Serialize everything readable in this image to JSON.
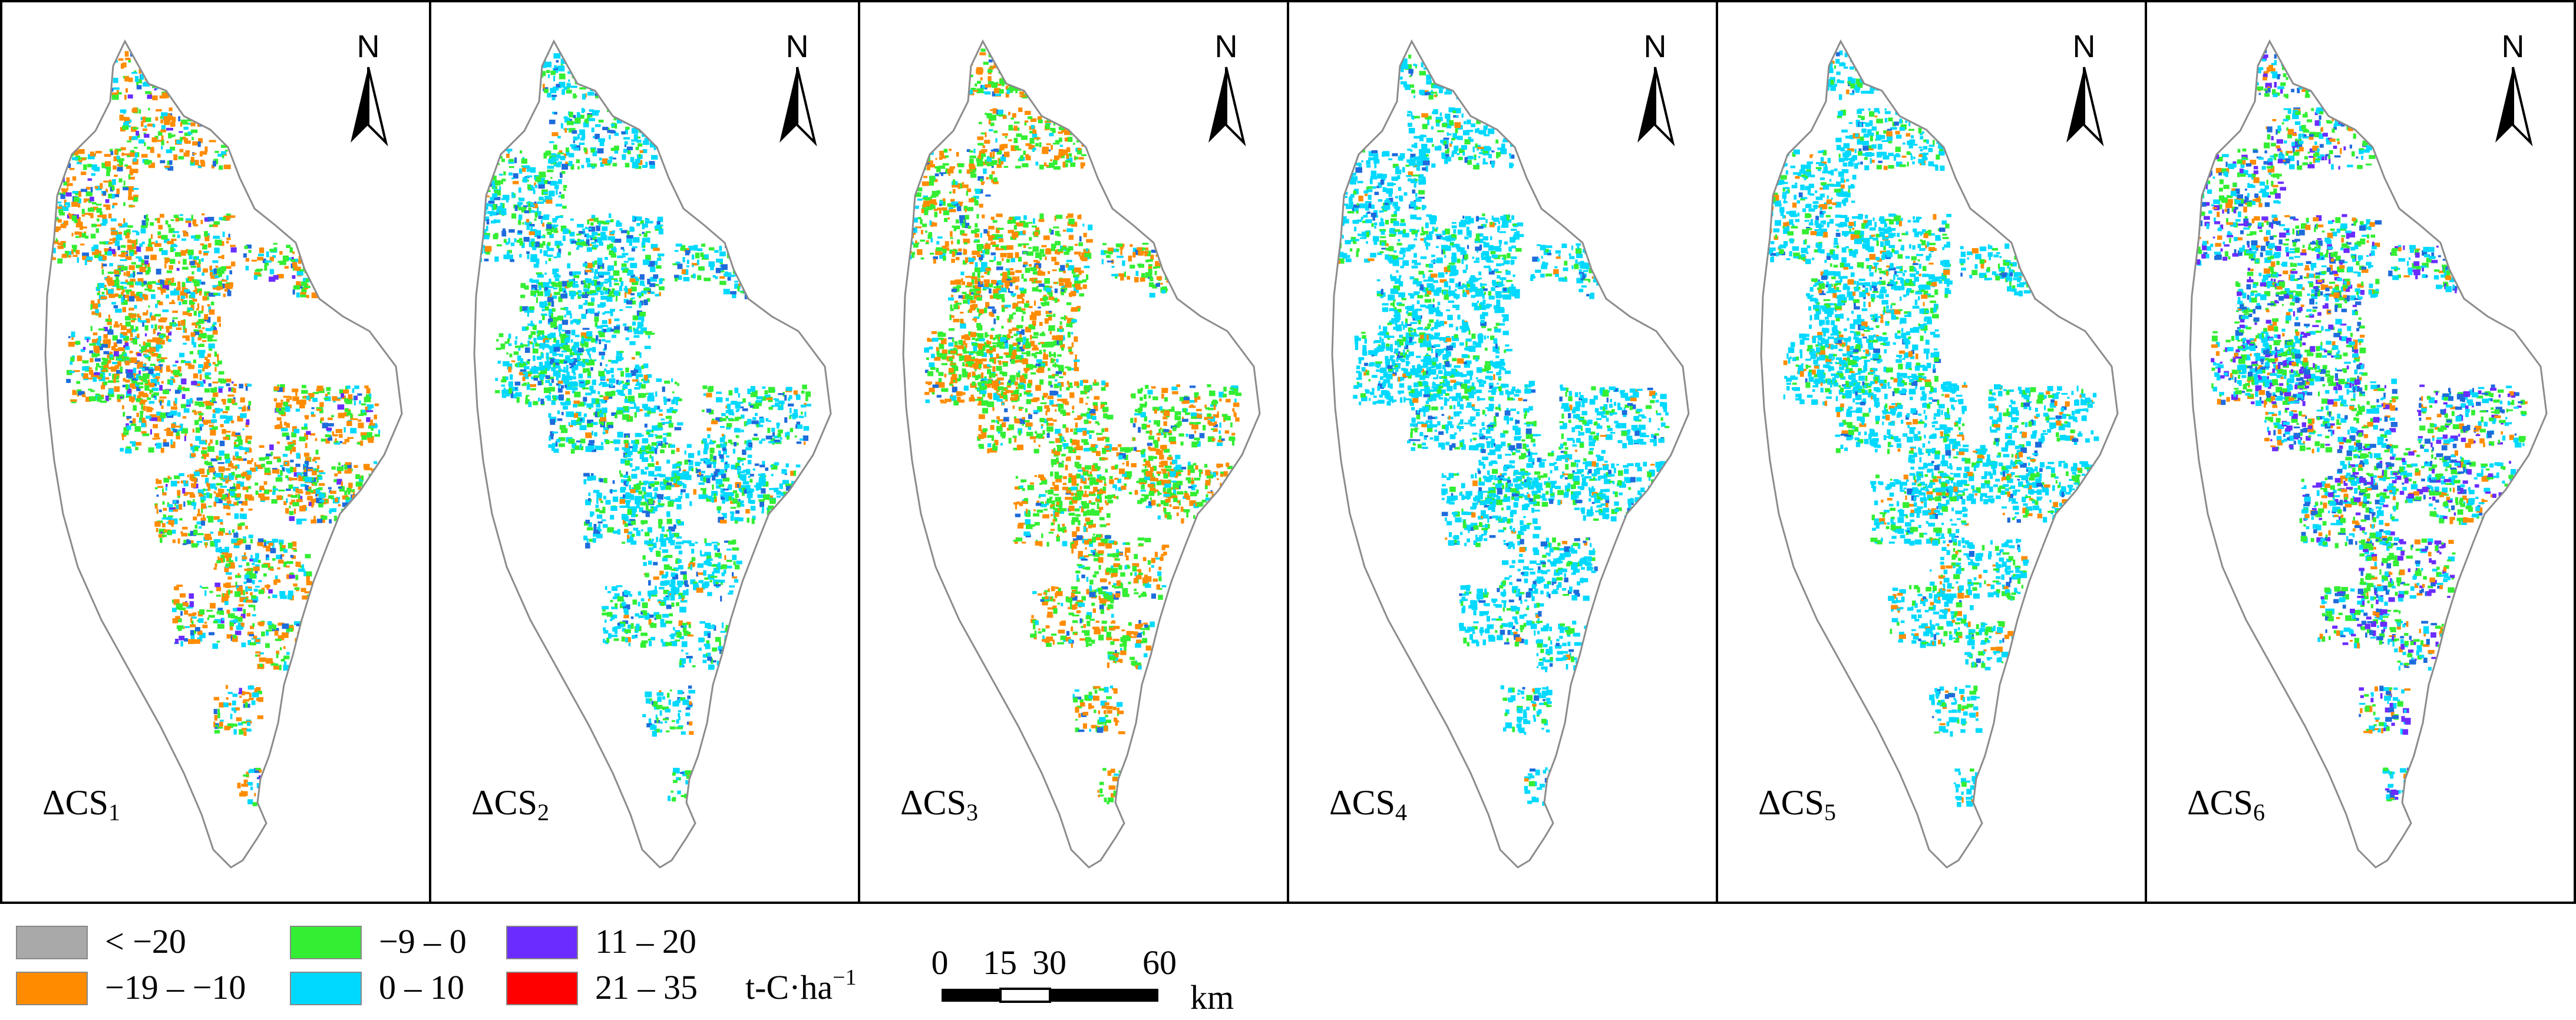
{
  "figure": {
    "panels": [
      {
        "label": "ΔCS",
        "sub": "1",
        "mix": {
          "#ff8c00": 0.4,
          "#33ee33": 0.28,
          "#00d9ff": 0.2,
          "#1e6bdc": 0.08,
          "#6a2cff": 0.04
        }
      },
      {
        "label": "ΔCS",
        "sub": "2",
        "mix": {
          "#00d9ff": 0.55,
          "#33ee33": 0.28,
          "#1e6bdc": 0.12,
          "#ff8c00": 0.05
        }
      },
      {
        "label": "ΔCS",
        "sub": "3",
        "mix": {
          "#33ee33": 0.45,
          "#ff8c00": 0.38,
          "#00d9ff": 0.12,
          "#1e6bdc": 0.05
        }
      },
      {
        "label": "ΔCS",
        "sub": "4",
        "mix": {
          "#00d9ff": 0.72,
          "#33ee33": 0.18,
          "#1e6bdc": 0.07,
          "#ff8c00": 0.03
        }
      },
      {
        "label": "ΔCS",
        "sub": "5",
        "mix": {
          "#00d9ff": 0.68,
          "#33ee33": 0.18,
          "#ff8c00": 0.09,
          "#1e6bdc": 0.05
        }
      },
      {
        "label": "ΔCS",
        "sub": "6",
        "mix": {
          "#00d9ff": 0.3,
          "#33ee33": 0.28,
          "#6a2cff": 0.16,
          "#1e6bdc": 0.14,
          "#ff8c00": 0.12
        }
      }
    ],
    "north_arrow_label": "N",
    "legend": {
      "items": [
        {
          "label": "< −20",
          "color": "#a9a9a9"
        },
        {
          "label": "−19 – −10",
          "color": "#ff8c00"
        },
        {
          "label": "−9 – 0",
          "color": "#33ee33"
        },
        {
          "label": "0 – 10",
          "color": "#00d9ff"
        },
        {
          "label": "11 – 20",
          "color": "#6a2cff"
        },
        {
          "label": "21 – 35",
          "color": "#ff0000"
        }
      ],
      "unit": "t-C·ha",
      "unit_exponent": "−1"
    },
    "scale_bar": {
      "ticks": [
        "0",
        "15",
        "30",
        "60"
      ],
      "unit": "km"
    },
    "colors": {
      "border": "#000000",
      "outline": "#8c8c8c",
      "background": "#ffffff"
    }
  }
}
